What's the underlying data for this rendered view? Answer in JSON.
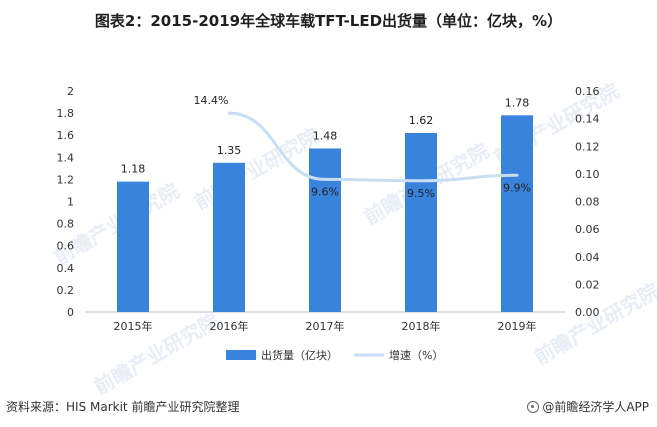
{
  "title": "图表2：2015-2019年全球车载TFT-LED出货量（单位：亿块，%）",
  "footer": {
    "source": "资料来源：HIS Markit 前瞻产业研究院整理",
    "brand": "@前瞻经济学人APP"
  },
  "watermark": "前瞻产业研究院",
  "colors": {
    "bar": "#3a83dc",
    "line": "#c9ddf4",
    "axis": "#bdbdbd"
  },
  "chart_data": {
    "type": "bar",
    "categories": [
      "2015年",
      "2016年",
      "2017年",
      "2018年",
      "2019年"
    ],
    "series": [
      {
        "name": "出货量（亿块）",
        "type": "bar",
        "axis": "left",
        "values": [
          1.18,
          1.35,
          1.48,
          1.62,
          1.78
        ],
        "labels": [
          "1.18",
          "1.35",
          "1.48",
          "1.62",
          "1.78"
        ]
      },
      {
        "name": "增速（%）",
        "type": "line",
        "axis": "right",
        "values": [
          null,
          0.144,
          0.096,
          0.095,
          0.099
        ],
        "labels": [
          "",
          "14.4%",
          "9.6%",
          "9.5%",
          "9.9%"
        ]
      }
    ],
    "y_left": {
      "min": 0,
      "max": 2,
      "ticks": [
        "0",
        "0.2",
        "0.4",
        "0.6",
        "0.8",
        "1",
        "1.2",
        "1.4",
        "1.6",
        "1.8",
        "2"
      ]
    },
    "y_right": {
      "min": 0,
      "max": 0.16,
      "ticks": [
        "0.00",
        "0.02",
        "0.04",
        "0.06",
        "0.08",
        "0.10",
        "0.12",
        "0.14",
        "0.16"
      ]
    },
    "grid": false,
    "legend_position": "bottom"
  }
}
